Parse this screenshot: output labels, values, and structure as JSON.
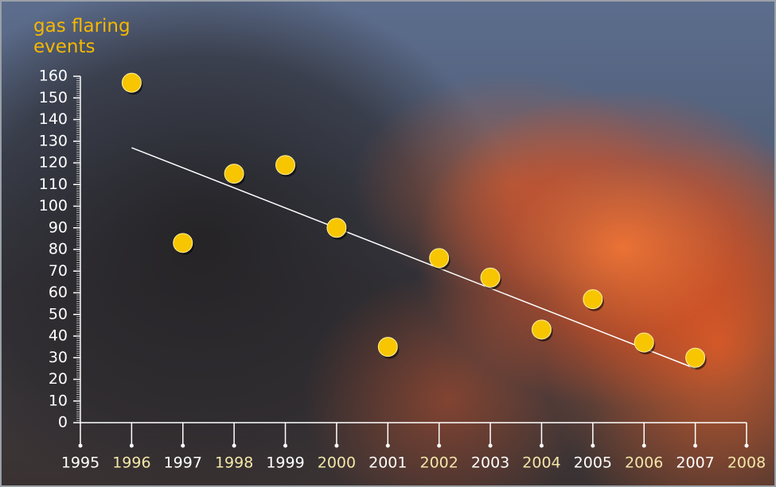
{
  "chart_data": {
    "type": "scatter",
    "y_label": "gas flaring events",
    "x": [
      1996,
      1997,
      1998,
      1999,
      2000,
      2001,
      2002,
      2003,
      2004,
      2005,
      2006,
      2007
    ],
    "values": [
      157,
      83,
      115,
      119,
      90,
      35,
      76,
      67,
      43,
      57,
      37,
      30
    ],
    "color": "#f7c600",
    "trend": {
      "x": [
        1996,
        2007
      ],
      "values": [
        127,
        25
      ],
      "color": "#ffffff"
    },
    "xlim": [
      1995,
      2008
    ],
    "xticks": [
      1995,
      1996,
      1997,
      1998,
      1999,
      2000,
      2001,
      2002,
      2003,
      2004,
      2005,
      2006,
      2007,
      2008
    ],
    "ylim": [
      0,
      160
    ],
    "yticks": [
      0,
      10,
      20,
      30,
      40,
      50,
      60,
      70,
      80,
      90,
      100,
      110,
      120,
      130,
      140,
      150,
      160
    ]
  }
}
